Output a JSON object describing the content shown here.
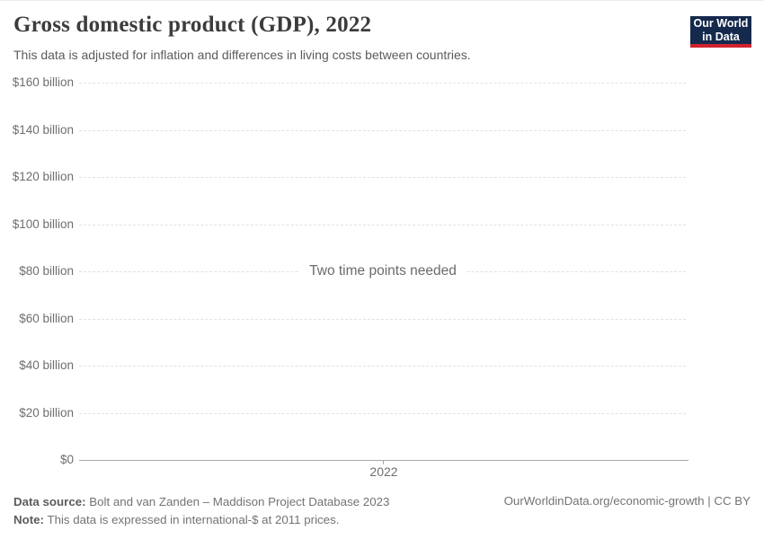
{
  "page": {
    "background": "#ffffff"
  },
  "header": {
    "title": "Gross domestic product (GDP), 2022",
    "subtitle": "This data is adjusted for inflation and differences in living costs between countries.",
    "logo": {
      "line1": "Our World",
      "line2": "in Data",
      "background": "#15294d",
      "accent": "#d1232f"
    }
  },
  "chart_data": {
    "type": "line",
    "title": "Gross domestic product (GDP), 2022",
    "series": [],
    "empty_message": "Two time points needed",
    "x_tick_labels": [
      "2022"
    ],
    "y_tick_labels": [
      "$0",
      "$20 billion",
      "$40 billion",
      "$60 billion",
      "$80 billion",
      "$100 billion",
      "$120 billion",
      "$140 billion",
      "$160 billion"
    ],
    "y_axis": {
      "min": 0,
      "max": 160,
      "tick_step": 20,
      "unit": "billion international-$"
    },
    "grid": "horizontal-dashed",
    "legend": "none"
  },
  "footer": {
    "datasource_label": "Data source:",
    "datasource_text": "Bolt and van Zanden – Maddison Project Database 2023",
    "note_label": "Note:",
    "note_text": "This data is expressed in international-$ at 2011 prices.",
    "link": "OurWorldinData.org/economic-growth | CC BY"
  }
}
